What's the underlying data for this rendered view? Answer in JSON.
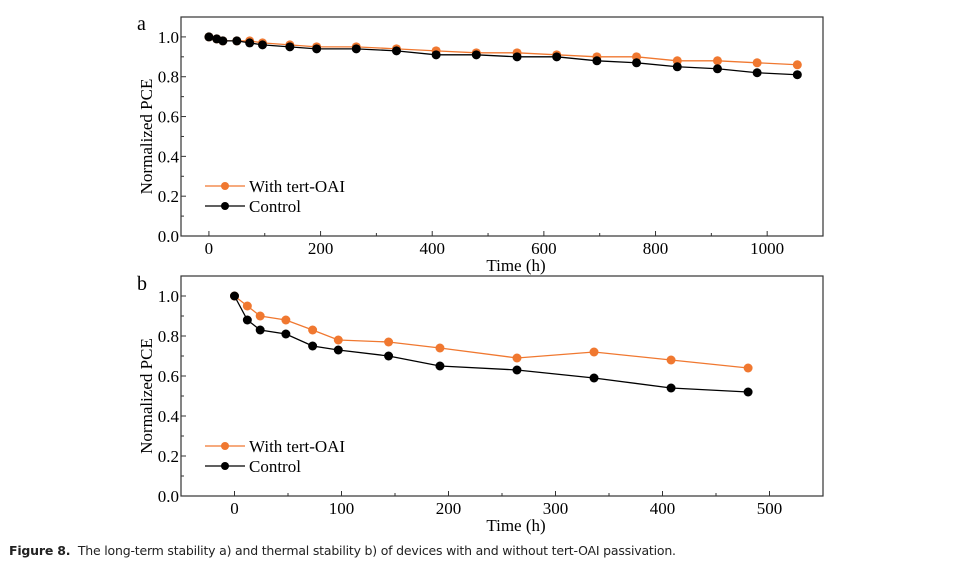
{
  "caption": {
    "label": "Figure 8.",
    "text": "The long-term stability a) and thermal stability b) of devices with and without tert-OAI passivation."
  },
  "colors": {
    "orange": "#f07830",
    "black": "#000000"
  },
  "chart_data": [
    {
      "type": "line",
      "panel_label": "a",
      "xlabel": "Time (h)",
      "ylabel": "Normalized PCE",
      "xlim": [
        -50,
        1100
      ],
      "ylim": [
        0,
        1.1
      ],
      "xticks": [
        0,
        200,
        400,
        600,
        800,
        1000
      ],
      "xtick_labels": [
        "0",
        "200",
        "400",
        "600",
        "800",
        "1000"
      ],
      "yticks": [
        0.0,
        0.2,
        0.4,
        0.6,
        0.8,
        1.0
      ],
      "ytick_labels": [
        "0.0",
        "0.2",
        "0.4",
        "0.6",
        "0.8",
        "1.0"
      ],
      "legend": "lower-left",
      "x": [
        0,
        14,
        25,
        50,
        73,
        96,
        145,
        193,
        264,
        336,
        407,
        479,
        552,
        623,
        695,
        766,
        839,
        911,
        982,
        1054
      ],
      "series": [
        {
          "name": "With tert-OAI",
          "color": "#f07830",
          "values": [
            1.0,
            0.99,
            0.98,
            0.98,
            0.98,
            0.97,
            0.96,
            0.95,
            0.95,
            0.94,
            0.93,
            0.92,
            0.92,
            0.91,
            0.9,
            0.9,
            0.88,
            0.88,
            0.87,
            0.86
          ]
        },
        {
          "name": "Control",
          "color": "#000000",
          "values": [
            1.0,
            0.99,
            0.98,
            0.98,
            0.97,
            0.96,
            0.95,
            0.94,
            0.94,
            0.93,
            0.91,
            0.91,
            0.9,
            0.9,
            0.88,
            0.87,
            0.85,
            0.84,
            0.82,
            0.81
          ]
        }
      ]
    },
    {
      "type": "line",
      "panel_label": "b",
      "xlabel": "Time (h)",
      "ylabel": "Normalized PCE",
      "xlim": [
        -50,
        550
      ],
      "ylim": [
        0,
        1.1
      ],
      "xticks": [
        0,
        100,
        200,
        300,
        400,
        500
      ],
      "xtick_labels": [
        "0",
        "100",
        "200",
        "300",
        "400",
        "500"
      ],
      "yticks": [
        0.0,
        0.2,
        0.4,
        0.6,
        0.8,
        1.0
      ],
      "ytick_labels": [
        "0.0",
        "0.2",
        "0.4",
        "0.6",
        "0.8",
        "1.0"
      ],
      "legend": "lower-left",
      "x": [
        0,
        12,
        24,
        48,
        73,
        97,
        144,
        192,
        264,
        336,
        408,
        480
      ],
      "series": [
        {
          "name": "With tert-OAI",
          "color": "#f07830",
          "values": [
            1.0,
            0.95,
            0.9,
            0.88,
            0.83,
            0.78,
            0.77,
            0.74,
            0.69,
            0.72,
            0.68,
            0.64
          ]
        },
        {
          "name": "Control",
          "color": "#000000",
          "values": [
            1.0,
            0.88,
            0.83,
            0.81,
            0.75,
            0.73,
            0.7,
            0.65,
            0.63,
            0.59,
            0.54,
            0.52
          ]
        }
      ]
    }
  ]
}
